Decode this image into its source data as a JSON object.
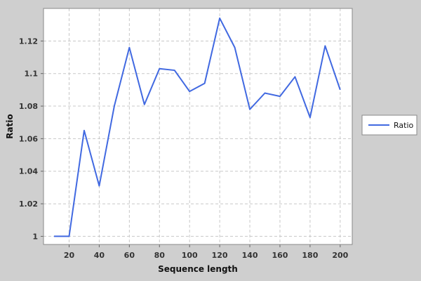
{
  "chart_data": {
    "type": "line",
    "title": "",
    "xlabel": "Sequence length",
    "ylabel": "Ratio",
    "xlim": [
      3,
      208
    ],
    "ylim": [
      0.995,
      1.14
    ],
    "xticks": [
      20,
      40,
      60,
      80,
      100,
      120,
      140,
      160,
      180,
      200
    ],
    "yticks": [
      1,
      1.02,
      1.04,
      1.06,
      1.08,
      1.1,
      1.12
    ],
    "ytick_labels": [
      "1",
      "1.02",
      "1.04",
      "1.06",
      "1.08",
      "1.1",
      "1.12"
    ],
    "grid": true,
    "legend_position": "right",
    "colors": {
      "background": "#cfcfcf",
      "plot_area": "#ffffff",
      "grid": "#c8c8c8",
      "line": "#4169e1"
    },
    "series": [
      {
        "name": "Ratio",
        "x": [
          10,
          20,
          30,
          40,
          50,
          60,
          70,
          80,
          90,
          100,
          110,
          120,
          130,
          140,
          150,
          160,
          170,
          180,
          190,
          200
        ],
        "values": [
          1.0,
          1.0,
          1.065,
          1.031,
          1.08,
          1.116,
          1.081,
          1.103,
          1.102,
          1.089,
          1.094,
          1.134,
          1.116,
          1.078,
          1.088,
          1.086,
          1.098,
          1.073,
          1.117,
          1.09
        ]
      }
    ]
  }
}
